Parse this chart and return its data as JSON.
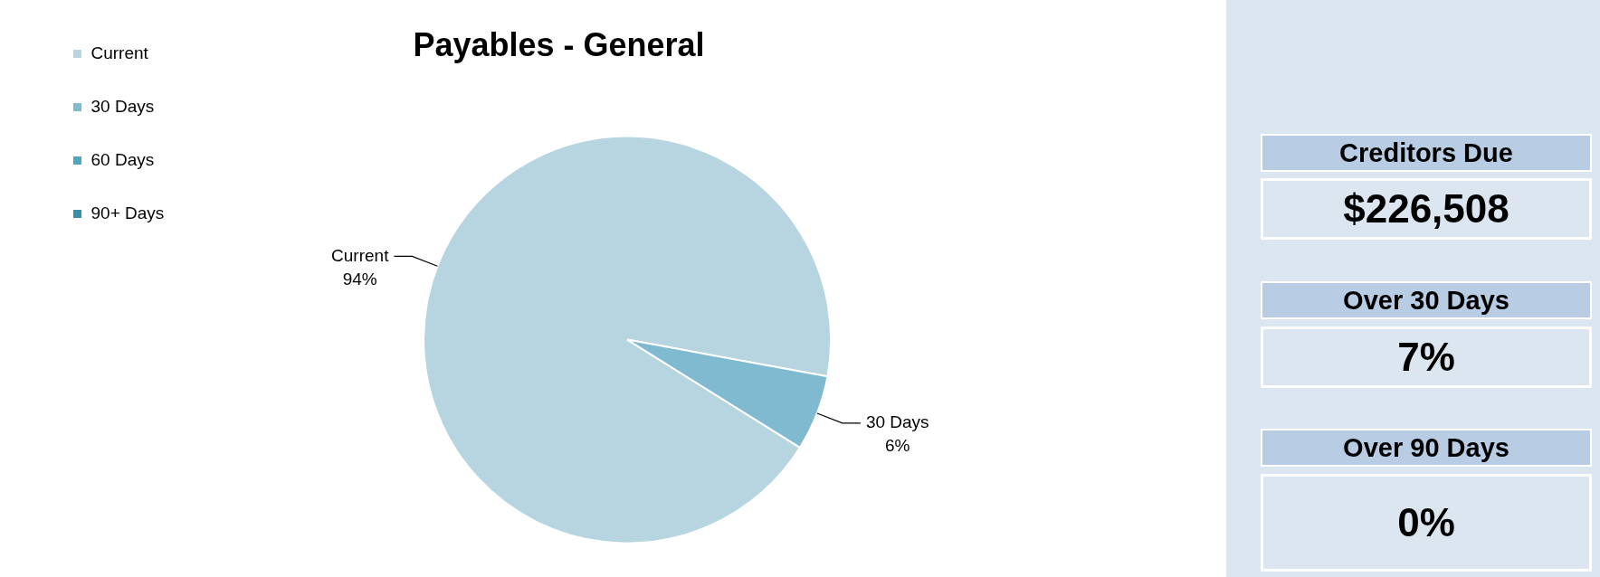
{
  "chart_data": [
    {
      "type": "pie",
      "title": "Payables - General",
      "categories": [
        "Current",
        "30 Days",
        "60 Days",
        "90+ Days"
      ],
      "values": [
        94,
        6,
        0,
        0
      ],
      "colors": [
        "#b7d5e0",
        "#7fbad0",
        "#4ea6bf",
        "#3a8ea5"
      ],
      "value_labels": [
        "94%",
        "6%",
        null,
        null
      ],
      "legend": "top left"
    },
    {
      "type": "other",
      "annotations": [
        "Creditors Due",
        "$226,508",
        "Over 30 Days",
        "7%",
        "Over 90 Days",
        "0%"
      ]
    }
  ]
}
